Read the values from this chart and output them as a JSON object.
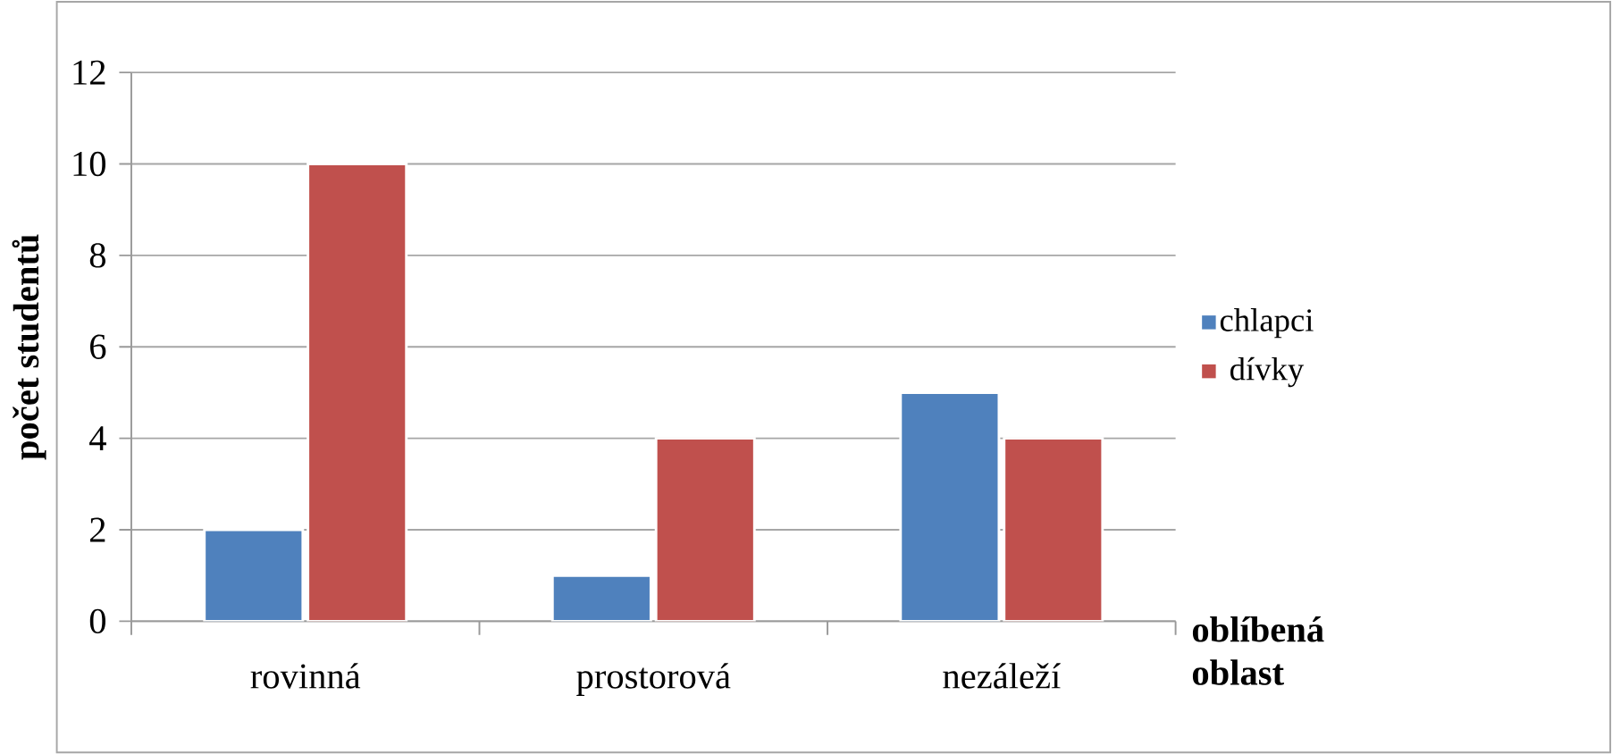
{
  "chart_data": {
    "type": "bar",
    "ylabel": "počet studentů",
    "xlabel": "oblíbená oblast",
    "categories": [
      "rovinná",
      "prostorová",
      "nezáleží"
    ],
    "series": [
      {
        "name": "chlapci",
        "color": "#4f81bd",
        "values": [
          2,
          1,
          5
        ]
      },
      {
        "name": "dívky",
        "color": "#c0504d",
        "values": [
          10,
          4,
          4
        ]
      }
    ],
    "ylim": [
      0,
      12
    ],
    "yticks": [
      0,
      2,
      4,
      6,
      8,
      10,
      12
    ],
    "grid": "y",
    "legend": "right"
  }
}
